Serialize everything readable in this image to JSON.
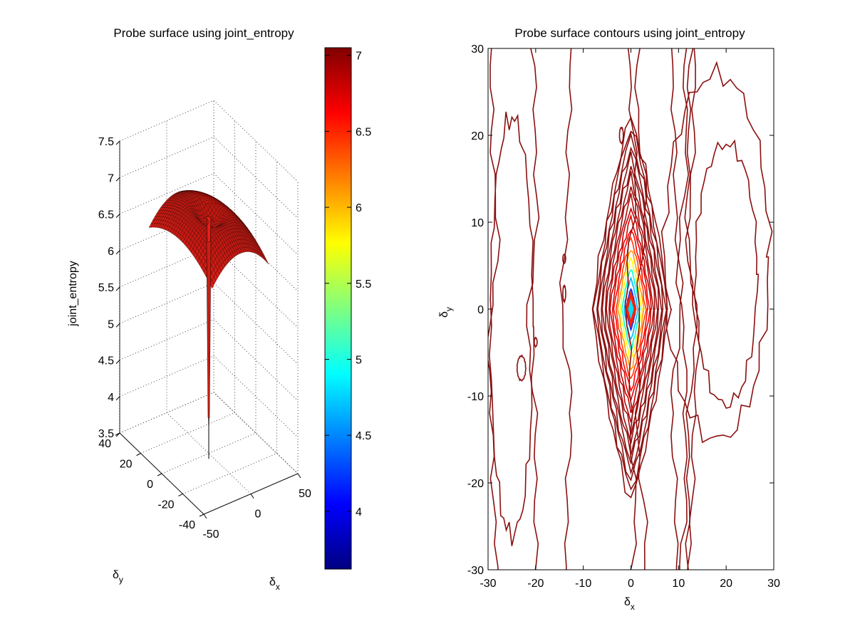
{
  "colors": {
    "background": "#ffffff",
    "surface_face": "#8e1a10",
    "surface_edge": "#3a0805",
    "contour": "#8b1010",
    "axis": "#000000",
    "grid": "#555555"
  },
  "chart_data": [
    {
      "type": "surface",
      "title": "Probe surface using joint_entropy",
      "xlabel": "δx",
      "ylabel": "δy",
      "zlabel": "joint_entropy",
      "xlim": [
        -50,
        50
      ],
      "ylim": [
        -40,
        40
      ],
      "zlim": [
        3.5,
        7.5
      ],
      "x_ticks": [
        "-50",
        "0",
        "50"
      ],
      "y_ticks": [
        "-40",
        "-20",
        "0",
        "20",
        "40"
      ],
      "z_ticks": [
        "3.5",
        "4",
        "4.5",
        "5",
        "5.5",
        "6",
        "6.5",
        "7",
        "7.5"
      ],
      "grid": true,
      "surface_extent": {
        "x": [
          -30,
          30
        ],
        "y": [
          -30,
          30
        ]
      },
      "z_plateau": 6.9,
      "z_min": 3.6,
      "z_min_at": [
        0,
        0
      ],
      "colorbar": {
        "range": [
          3.62,
          7.05
        ],
        "ticks": [
          "4",
          "4.5",
          "5",
          "5.5",
          "6",
          "6.5",
          "7"
        ],
        "colormap": "jet"
      }
    },
    {
      "type": "contour",
      "title": "Probe surface contours using joint_entropy",
      "xlabel": "δx",
      "ylabel": "δy",
      "xlim": [
        -30,
        30
      ],
      "ylim": [
        -30,
        30
      ],
      "x_ticks": [
        "-30",
        "-20",
        "-10",
        "0",
        "10",
        "20",
        "30"
      ],
      "y_ticks": [
        "-30",
        "-20",
        "-10",
        "0",
        "10",
        "20",
        "30"
      ],
      "minimum_at": [
        0,
        0
      ],
      "minimum_value": 3.6,
      "plateau_value": 6.9,
      "contour_levels_near_minimum": 18
    }
  ]
}
